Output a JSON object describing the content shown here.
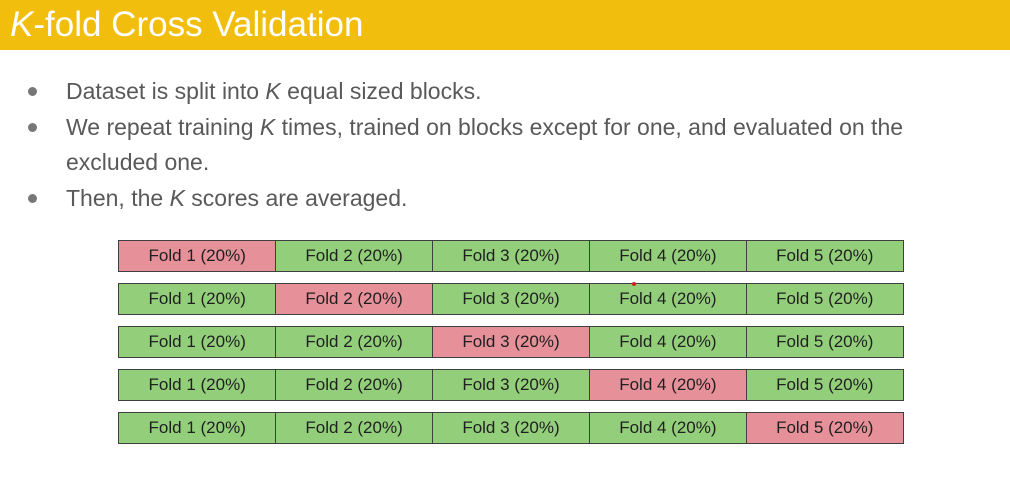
{
  "title": {
    "italic_part": "K",
    "rest": "-fold Cross Validation"
  },
  "bullets": [
    {
      "line1": [
        "Dataset is split into ",
        "K",
        " equal sized blocks."
      ],
      "line2": ""
    },
    {
      "line1": [
        "We repeat training ",
        "K",
        " times, trained on blocks except for one, and evaluated on the"
      ],
      "line2": "excluded one."
    },
    {
      "line1": [
        "Then, the ",
        "K",
        " scores are averaged."
      ],
      "line2": ""
    }
  ],
  "folds": {
    "labels": [
      "Fold 1 (20%)",
      "Fold 2 (20%)",
      "Fold 3 (20%)",
      "Fold 4 (20%)",
      "Fold 5 (20%)"
    ],
    "rows": [
      {
        "test_fold": 1
      },
      {
        "test_fold": 2
      },
      {
        "test_fold": 3
      },
      {
        "test_fold": 4
      },
      {
        "test_fold": 5
      }
    ],
    "colors": {
      "train": "#93cf7b",
      "test": "#e6909a"
    }
  },
  "theme": {
    "title_bar": "#f1be0d",
    "title_text": "#ffffff",
    "bullet_text": "#595959"
  }
}
